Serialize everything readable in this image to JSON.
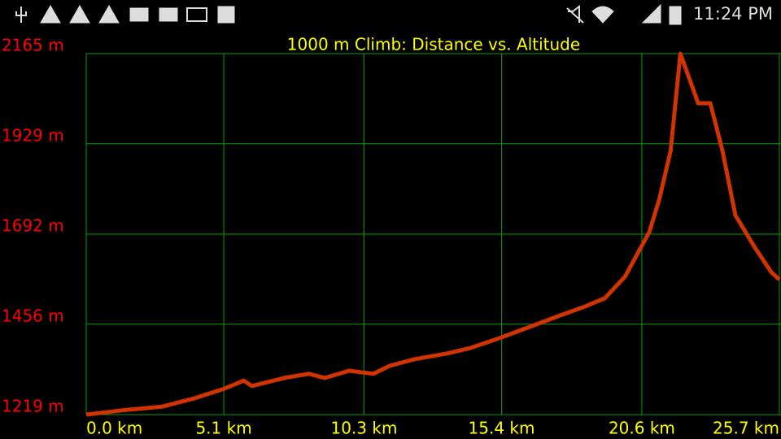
{
  "status_bar": {
    "time": "11:24 PM"
  },
  "chart_data": {
    "type": "line",
    "title": "1000 m Climb: Distance vs. Altitude",
    "x": [
      0,
      1.32,
      2.83,
      4.03,
      5.12,
      5.84,
      6.14,
      7.34,
      8.25,
      8.85,
      9.75,
      10.65,
      11.26,
      12.16,
      13.36,
      14.26,
      15.38,
      16.37,
      17.57,
      18.48,
      19.23,
      19.98,
      20.88,
      21.25,
      21.67,
      22.03,
      22.69,
      23.14,
      23.59,
      24.07,
      24.8,
      25.4,
      25.7
    ],
    "series": [
      {
        "color": "#d13400",
        "values": [
          1219,
          1230,
          1240,
          1262,
          1287,
          1308,
          1294,
          1315,
          1326,
          1315,
          1334,
          1326,
          1347,
          1364,
          1379,
          1394,
          1421,
          1447,
          1479,
          1502,
          1524,
          1581,
          1698,
          1784,
          1911,
          2165,
          2035,
          2035,
          1911,
          1741,
          1656,
          1592,
          1573
        ]
      }
    ],
    "xlim": [
      0,
      25.7
    ],
    "ylim": [
      1219,
      2165
    ],
    "xticks": [
      {
        "value": 0,
        "label": "0.0 km"
      },
      {
        "value": 5.1,
        "label": "5.1 km"
      },
      {
        "value": 10.3,
        "label": "10.3 km"
      },
      {
        "value": 15.4,
        "label": "15.4 km"
      },
      {
        "value": 20.6,
        "label": "20.6 km"
      },
      {
        "value": 25.7,
        "label": "25.7 km"
      }
    ],
    "yticks": [
      {
        "value": 1219,
        "label": "1219 m"
      },
      {
        "value": 1456,
        "label": "1456 m"
      },
      {
        "value": 1692,
        "label": "1692 m"
      },
      {
        "value": 1929,
        "label": "1929 m"
      },
      {
        "value": 2165,
        "label": "2165 m"
      }
    ],
    "grid": true
  }
}
